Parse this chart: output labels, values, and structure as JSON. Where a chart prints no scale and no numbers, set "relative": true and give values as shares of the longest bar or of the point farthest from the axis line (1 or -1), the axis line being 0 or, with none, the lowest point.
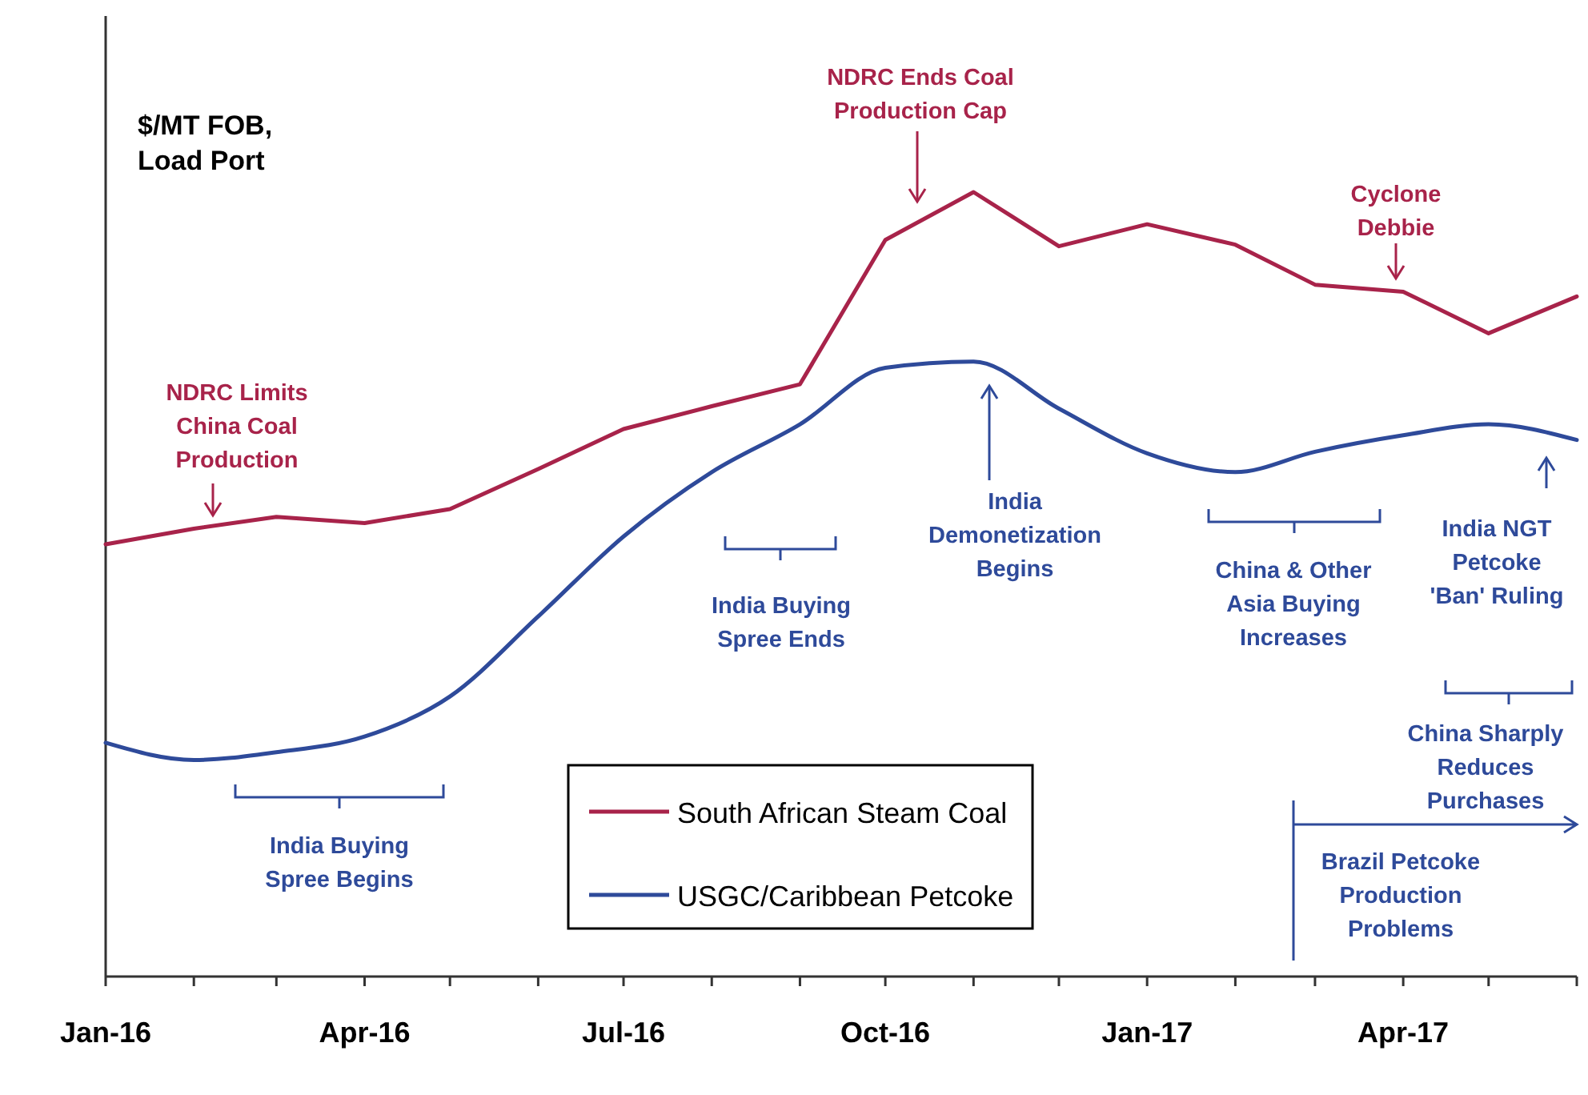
{
  "chart_data": {
    "type": "line",
    "relative": true,
    "ylabel": "$/MT FOB, Load Port",
    "x": [
      "2016-01",
      "2016-02",
      "2016-03",
      "2016-04",
      "2016-05",
      "2016-06",
      "2016-07",
      "2016-08",
      "2016-09",
      "2016-10",
      "2016-11",
      "2016-12",
      "2017-01",
      "2017-02",
      "2017-03",
      "2017-04",
      "2017-05",
      "2017-06"
    ],
    "xlim": [
      "2016-01",
      "2017-06"
    ],
    "xticks": [
      {
        "value": "2016-01",
        "label": "Jan-16"
      },
      {
        "value": "2016-02",
        "label": null
      },
      {
        "value": "2016-03",
        "label": null
      },
      {
        "value": "2016-04",
        "label": "Apr-16"
      },
      {
        "value": "2016-05",
        "label": null
      },
      {
        "value": "2016-06",
        "label": null
      },
      {
        "value": "2016-07",
        "label": "Jul-16"
      },
      {
        "value": "2016-08",
        "label": null
      },
      {
        "value": "2016-09",
        "label": null
      },
      {
        "value": "2016-10",
        "label": "Oct-16"
      },
      {
        "value": "2016-11",
        "label": null
      },
      {
        "value": "2016-12",
        "label": null
      },
      {
        "value": "2017-01",
        "label": "Jan-17"
      },
      {
        "value": "2017-02",
        "label": null
      },
      {
        "value": "2017-03",
        "label": null
      },
      {
        "value": "2017-04",
        "label": "Apr-17"
      },
      {
        "value": "2017-05",
        "label": null
      },
      {
        "value": "2017-06",
        "label": null
      }
    ],
    "series": [
      {
        "name": "South African Steam Coal",
        "color": "#a8234a",
        "values": [
          0.551,
          0.571,
          0.586,
          0.578,
          0.596,
          0.647,
          0.698,
          0.727,
          0.755,
          0.939,
          1,
          0.931,
          0.959,
          0.933,
          0.882,
          0.873,
          0.82,
          0.867
        ]
      },
      {
        "name": "USGC/Caribbean Petcoke",
        "color": "#2e4a9a",
        "values": [
          0.298,
          0.276,
          0.286,
          0.306,
          0.357,
          0.459,
          0.561,
          0.643,
          0.704,
          0.776,
          0.784,
          0.724,
          0.667,
          0.643,
          0.669,
          0.69,
          0.704,
          0.684
        ]
      }
    ],
    "legend": "bottom",
    "annotations": [
      "NDRC Limits China Coal Production",
      "NDRC Ends Coal Production Cap",
      "Cyclone Debbie",
      "India Demonetization Begins",
      "India NGT Petcoke 'Ban' Ruling",
      "India Buying Spree Begins",
      "India Buying Spree Ends",
      "China & Other Asia Buying Increases",
      "China Sharply Reduces Purchases",
      "Brazil Petcoke Production Problems"
    ]
  }
}
